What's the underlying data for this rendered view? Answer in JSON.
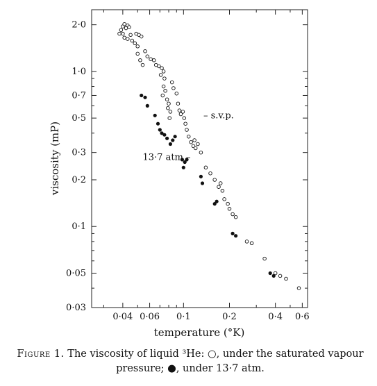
{
  "chart_data": {
    "type": "scatter",
    "xscale": "log",
    "yscale": "log",
    "xlim": [
      0.025,
      0.65
    ],
    "ylim": [
      0.03,
      2.5
    ],
    "xlabel": "temperature (°K)",
    "ylabel": "viscosity (mP)",
    "x_ticks": [
      {
        "value": 0.04,
        "label": "0·04"
      },
      {
        "value": 0.06,
        "label": "0·06"
      },
      {
        "value": 0.1,
        "label": "0·1"
      },
      {
        "value": 0.2,
        "label": "0·2"
      },
      {
        "value": 0.4,
        "label": "0·4"
      },
      {
        "value": 0.6,
        "label": "0·6"
      }
    ],
    "x_minor_ticks": [
      0.03,
      0.05,
      0.07,
      0.08,
      0.09,
      0.3,
      0.5
    ],
    "y_ticks": [
      {
        "value": 2.0,
        "label": "2·0"
      },
      {
        "value": 1.0,
        "label": "1·0"
      },
      {
        "value": 0.7,
        "label": "0·7"
      },
      {
        "value": 0.5,
        "label": "0·5"
      },
      {
        "value": 0.3,
        "label": "0·3"
      },
      {
        "value": 0.2,
        "label": "0·2"
      },
      {
        "value": 0.1,
        "label": "0·1"
      },
      {
        "value": 0.05,
        "label": "0·05"
      },
      {
        "value": 0.03,
        "label": "0·03"
      }
    ],
    "y_minor_ticks": [
      0.04,
      0.06,
      0.07,
      0.08,
      0.09,
      0.4,
      0.6,
      0.8,
      0.9
    ],
    "series": [
      {
        "name": "s.v.p.",
        "marker": "open-circle",
        "points": [
          [
            0.038,
            1.75
          ],
          [
            0.039,
            1.85
          ],
          [
            0.04,
            1.95
          ],
          [
            0.041,
            2.02
          ],
          [
            0.04,
            1.75
          ],
          [
            0.042,
            1.9
          ],
          [
            0.043,
            1.98
          ],
          [
            0.044,
            1.93
          ],
          [
            0.041,
            1.65
          ],
          [
            0.043,
            1.62
          ],
          [
            0.045,
            1.72
          ],
          [
            0.046,
            1.58
          ],
          [
            0.048,
            1.52
          ],
          [
            0.05,
            1.45
          ],
          [
            0.049,
            1.75
          ],
          [
            0.051,
            1.72
          ],
          [
            0.053,
            1.68
          ],
          [
            0.05,
            1.3
          ],
          [
            0.052,
            1.18
          ],
          [
            0.054,
            1.1
          ],
          [
            0.056,
            1.35
          ],
          [
            0.058,
            1.25
          ],
          [
            0.061,
            1.2
          ],
          [
            0.064,
            1.18
          ],
          [
            0.066,
            1.1
          ],
          [
            0.069,
            1.08
          ],
          [
            0.072,
            1.05
          ],
          [
            0.074,
            1.0
          ],
          [
            0.071,
            0.95
          ],
          [
            0.075,
            0.9
          ],
          [
            0.074,
            0.8
          ],
          [
            0.076,
            0.75
          ],
          [
            0.073,
            0.7
          ],
          [
            0.078,
            0.66
          ],
          [
            0.08,
            0.62
          ],
          [
            0.079,
            0.58
          ],
          [
            0.082,
            0.55
          ],
          [
            0.081,
            0.5
          ],
          [
            0.084,
            0.85
          ],
          [
            0.086,
            0.78
          ],
          [
            0.09,
            0.72
          ],
          [
            0.092,
            0.62
          ],
          [
            0.094,
            0.56
          ],
          [
            0.096,
            0.53
          ],
          [
            0.099,
            0.55
          ],
          [
            0.101,
            0.5
          ],
          [
            0.103,
            0.46
          ],
          [
            0.105,
            0.42
          ],
          [
            0.108,
            0.38
          ],
          [
            0.112,
            0.35
          ],
          [
            0.116,
            0.33
          ],
          [
            0.12,
            0.32
          ],
          [
            0.118,
            0.36
          ],
          [
            0.124,
            0.34
          ],
          [
            0.13,
            0.3
          ],
          [
            0.14,
            0.24
          ],
          [
            0.15,
            0.22
          ],
          [
            0.16,
            0.2
          ],
          [
            0.17,
            0.18
          ],
          [
            0.175,
            0.19
          ],
          [
            0.18,
            0.17
          ],
          [
            0.185,
            0.15
          ],
          [
            0.195,
            0.14
          ],
          [
            0.2,
            0.13
          ],
          [
            0.21,
            0.12
          ],
          [
            0.22,
            0.115
          ],
          [
            0.26,
            0.08
          ],
          [
            0.28,
            0.078
          ],
          [
            0.34,
            0.062
          ],
          [
            0.4,
            0.05
          ],
          [
            0.43,
            0.048
          ],
          [
            0.47,
            0.046
          ],
          [
            0.57,
            0.04
          ]
        ]
      },
      {
        "name": "13·7 atm",
        "marker": "filled-circle",
        "points": [
          [
            0.053,
            0.7
          ],
          [
            0.056,
            0.68
          ],
          [
            0.058,
            0.6
          ],
          [
            0.065,
            0.52
          ],
          [
            0.068,
            0.46
          ],
          [
            0.07,
            0.42
          ],
          [
            0.072,
            0.4
          ],
          [
            0.075,
            0.39
          ],
          [
            0.078,
            0.37
          ],
          [
            0.082,
            0.34
          ],
          [
            0.085,
            0.36
          ],
          [
            0.088,
            0.38
          ],
          [
            0.098,
            0.27
          ],
          [
            0.1,
            0.24
          ],
          [
            0.102,
            0.26
          ],
          [
            0.105,
            0.27
          ],
          [
            0.13,
            0.21
          ],
          [
            0.133,
            0.19
          ],
          [
            0.16,
            0.14
          ],
          [
            0.165,
            0.145
          ],
          [
            0.21,
            0.09
          ],
          [
            0.22,
            0.087
          ],
          [
            0.37,
            0.05
          ],
          [
            0.39,
            0.048
          ]
        ]
      }
    ],
    "annotations": [
      {
        "text": "– s.v.p.",
        "at": [
          0.135,
          0.52
        ]
      },
      {
        "text": "13·7 atm –",
        "at": [
          0.054,
          0.28
        ]
      }
    ],
    "grid": false,
    "legend": "none"
  },
  "caption": {
    "figure_label": "Figure 1.",
    "text_part1": " The viscosity of liquid ³He: ○, under the saturated vapour pressure; ●, under 13·7 atm."
  }
}
